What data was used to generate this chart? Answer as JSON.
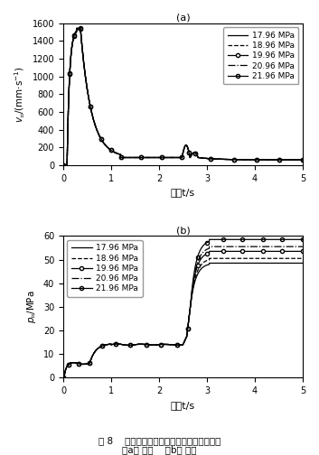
{
  "xlabel": "时间t/s",
  "xlim": [
    0,
    5
  ],
  "ylim_a": [
    0,
    1600
  ],
  "ylim_b": [
    0,
    60
  ],
  "yticks_a": [
    0,
    200,
    400,
    600,
    800,
    1000,
    1200,
    1400,
    1600
  ],
  "yticks_b": [
    0,
    10,
    20,
    30,
    40,
    50,
    60
  ],
  "xticks": [
    0,
    1,
    2,
    3,
    4,
    5
  ],
  "legend_labels": [
    "17.96 MPa",
    "18.96 MPa",
    "19.96 MPa",
    "20.96 MPa",
    "21.96 MPa"
  ],
  "final_pressures": [
    48.5,
    50.5,
    53.5,
    55.5,
    58.5
  ],
  "caption": "图 8    增压蔻能器设定压力对压射系统的影响",
  "caption2": "（a） 速度    （b） 压力"
}
